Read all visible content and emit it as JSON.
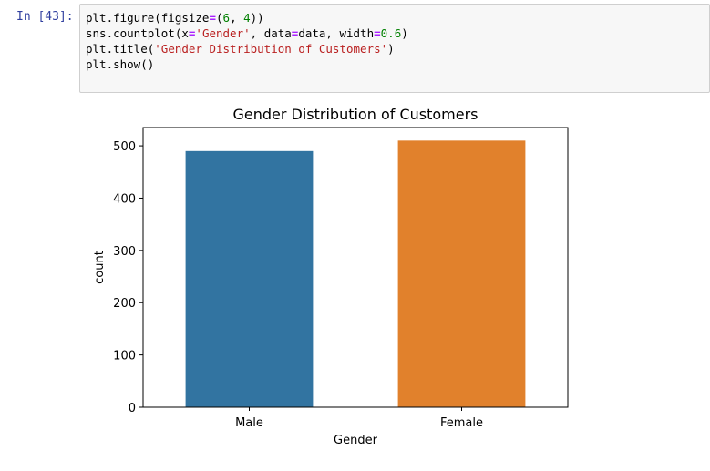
{
  "cell": {
    "prompt": "In [43]:",
    "code": {
      "line1": {
        "a": "plt.figure(figsize",
        "op1": "=",
        "b": "(",
        "n1": "6",
        "c": ", ",
        "n2": "4",
        "d": "))"
      },
      "line2": {
        "a": "sns.countplot(x",
        "op1": "=",
        "s1": "'Gender'",
        "b": ", data",
        "op2": "=",
        "c": "data, width",
        "op3": "=",
        "n1": "0.6",
        "d": ")"
      },
      "line3": {
        "a": "plt.title(",
        "s1": "'Gender Distribution of Customers'",
        "b": ")"
      },
      "line4": {
        "a": "plt.show()"
      }
    }
  },
  "colors": {
    "male_bar": "#3274a1",
    "female_bar": "#e1812c",
    "prompt": "#303f9f"
  },
  "chart_data": {
    "type": "bar",
    "title": "Gender Distribution of Customers",
    "xlabel": "Gender",
    "ylabel": "count",
    "categories": [
      "Male",
      "Female"
    ],
    "values": [
      490,
      510
    ],
    "ylim": [
      0,
      535
    ],
    "yticks": [
      0,
      100,
      200,
      300,
      400,
      500
    ],
    "grid": false,
    "legend": "none"
  }
}
